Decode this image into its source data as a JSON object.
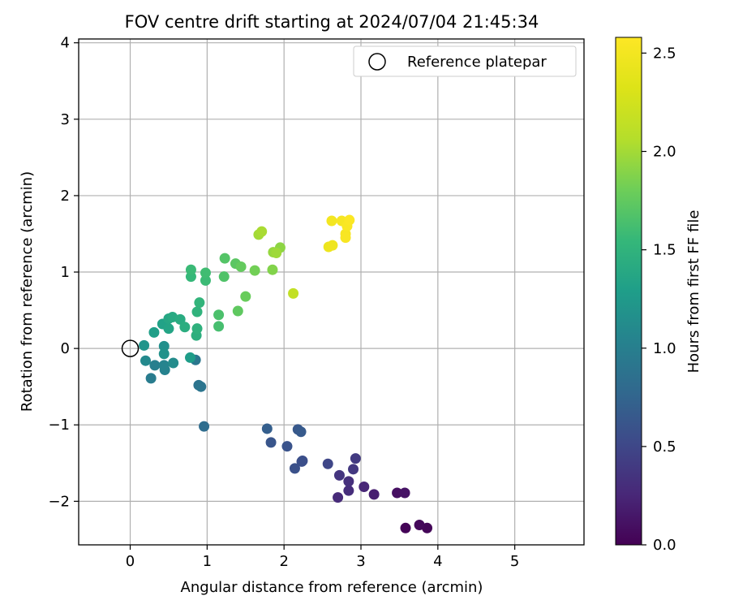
{
  "chart_data": {
    "type": "scatter",
    "title": "FOV centre drift starting at 2024/07/04 21:45:34",
    "xlabel": "Angular distance from reference (arcmin)",
    "ylabel": "Rotation from reference (arcmin)",
    "xlim": [
      -0.67,
      5.9
    ],
    "ylim": [
      -2.57,
      4.05
    ],
    "xticks": [
      0,
      1,
      2,
      3,
      4,
      5
    ],
    "yticks": [
      -2,
      -1,
      0,
      1,
      2,
      3,
      4
    ],
    "xtick_labels": [
      "0",
      "1",
      "2",
      "3",
      "4",
      "5"
    ],
    "ytick_labels": [
      "−2",
      "−1",
      "0",
      "1",
      "2",
      "3",
      "4"
    ],
    "grid": true,
    "legend": {
      "position": "top-right",
      "label": "Reference platepar"
    },
    "reference_point": {
      "x": 0,
      "y": 0
    },
    "colorbar": {
      "label": "Hours from first FF file",
      "colormap": "viridis",
      "range": [
        0,
        2.58
      ],
      "ticks": [
        0.0,
        0.5,
        1.0,
        1.5,
        2.0,
        2.5
      ],
      "tick_labels": [
        "0.0",
        "0.5",
        "1.0",
        "1.5",
        "2.0",
        "2.5"
      ]
    },
    "points": [
      {
        "x": 3.58,
        "y": -2.35,
        "c": 0.02
      },
      {
        "x": 3.86,
        "y": -2.35,
        "c": 0.03
      },
      {
        "x": 3.76,
        "y": -2.31,
        "c": 0.05
      },
      {
        "x": 3.47,
        "y": -1.89,
        "c": 0.1
      },
      {
        "x": 3.57,
        "y": -1.89,
        "c": 0.12
      },
      {
        "x": 3.17,
        "y": -1.91,
        "c": 0.2
      },
      {
        "x": 3.04,
        "y": -1.81,
        "c": 0.25
      },
      {
        "x": 2.7,
        "y": -1.95,
        "c": 0.28
      },
      {
        "x": 2.84,
        "y": -1.86,
        "c": 0.3
      },
      {
        "x": 2.84,
        "y": -1.74,
        "c": 0.32
      },
      {
        "x": 2.72,
        "y": -1.66,
        "c": 0.36
      },
      {
        "x": 2.9,
        "y": -1.58,
        "c": 0.38
      },
      {
        "x": 2.93,
        "y": -1.44,
        "c": 0.4
      },
      {
        "x": 2.57,
        "y": -1.51,
        "c": 0.5
      },
      {
        "x": 2.24,
        "y": -1.47,
        "c": 0.55
      },
      {
        "x": 2.23,
        "y": -1.48,
        "c": 0.57
      },
      {
        "x": 2.14,
        "y": -1.57,
        "c": 0.58
      },
      {
        "x": 2.04,
        "y": -1.28,
        "c": 0.6
      },
      {
        "x": 1.83,
        "y": -1.23,
        "c": 0.62
      },
      {
        "x": 2.18,
        "y": -1.06,
        "c": 0.64
      },
      {
        "x": 2.22,
        "y": -1.09,
        "c": 0.66
      },
      {
        "x": 1.78,
        "y": -1.05,
        "c": 0.7
      },
      {
        "x": 0.96,
        "y": -1.02,
        "c": 0.82
      },
      {
        "x": 0.89,
        "y": -0.48,
        "c": 0.88
      },
      {
        "x": 0.92,
        "y": -0.5,
        "c": 0.9
      },
      {
        "x": 0.85,
        "y": -0.15,
        "c": 0.92
      },
      {
        "x": 0.27,
        "y": -0.39,
        "c": 0.97
      },
      {
        "x": 0.32,
        "y": -0.22,
        "c": 1.0
      },
      {
        "x": 0.45,
        "y": -0.28,
        "c": 1.03
      },
      {
        "x": 0.44,
        "y": -0.22,
        "c": 1.05
      },
      {
        "x": 0.2,
        "y": -0.16,
        "c": 1.1
      },
      {
        "x": 0.56,
        "y": -0.19,
        "c": 1.12
      },
      {
        "x": 0.44,
        "y": 0.03,
        "c": 1.16
      },
      {
        "x": 0.44,
        "y": -0.07,
        "c": 1.18
      },
      {
        "x": 0.18,
        "y": 0.04,
        "c": 1.2
      },
      {
        "x": 0.78,
        "y": -0.12,
        "c": 1.28
      },
      {
        "x": 0.31,
        "y": 0.21,
        "c": 1.3
      },
      {
        "x": 0.42,
        "y": 0.32,
        "c": 1.33
      },
      {
        "x": 0.5,
        "y": 0.26,
        "c": 1.35
      },
      {
        "x": 0.5,
        "y": 0.39,
        "c": 1.37
      },
      {
        "x": 0.55,
        "y": 0.41,
        "c": 1.4
      },
      {
        "x": 0.65,
        "y": 0.38,
        "c": 1.42
      },
      {
        "x": 0.71,
        "y": 0.28,
        "c": 1.44
      },
      {
        "x": 0.86,
        "y": 0.17,
        "c": 1.46
      },
      {
        "x": 0.87,
        "y": 0.26,
        "c": 1.48
      },
      {
        "x": 0.87,
        "y": 0.48,
        "c": 1.5
      },
      {
        "x": 0.9,
        "y": 0.6,
        "c": 1.52
      },
      {
        "x": 0.79,
        "y": 0.94,
        "c": 1.55
      },
      {
        "x": 0.79,
        "y": 1.03,
        "c": 1.57
      },
      {
        "x": 0.98,
        "y": 0.89,
        "c": 1.58
      },
      {
        "x": 0.98,
        "y": 0.99,
        "c": 1.6
      },
      {
        "x": 1.15,
        "y": 0.29,
        "c": 1.63
      },
      {
        "x": 1.15,
        "y": 0.44,
        "c": 1.65
      },
      {
        "x": 1.22,
        "y": 0.94,
        "c": 1.67
      },
      {
        "x": 1.23,
        "y": 1.18,
        "c": 1.69
      },
      {
        "x": 1.37,
        "y": 1.11,
        "c": 1.72
      },
      {
        "x": 1.4,
        "y": 0.49,
        "c": 1.74
      },
      {
        "x": 1.44,
        "y": 1.07,
        "c": 1.76
      },
      {
        "x": 1.5,
        "y": 0.68,
        "c": 1.78
      },
      {
        "x": 1.62,
        "y": 1.02,
        "c": 1.82
      },
      {
        "x": 1.85,
        "y": 1.03,
        "c": 1.88
      },
      {
        "x": 1.95,
        "y": 1.32,
        "c": 1.92
      },
      {
        "x": 1.86,
        "y": 1.26,
        "c": 1.95
      },
      {
        "x": 1.9,
        "y": 1.25,
        "c": 1.98
      },
      {
        "x": 1.67,
        "y": 1.49,
        "c": 2.0
      },
      {
        "x": 1.71,
        "y": 1.53,
        "c": 2.02
      },
      {
        "x": 2.12,
        "y": 0.72,
        "c": 2.15
      },
      {
        "x": 2.58,
        "y": 1.33,
        "c": 2.45
      },
      {
        "x": 2.63,
        "y": 1.35,
        "c": 2.47
      },
      {
        "x": 2.62,
        "y": 1.67,
        "c": 2.5
      },
      {
        "x": 2.75,
        "y": 1.67,
        "c": 2.52
      },
      {
        "x": 2.8,
        "y": 1.5,
        "c": 2.53
      },
      {
        "x": 2.8,
        "y": 1.45,
        "c": 2.54
      },
      {
        "x": 2.82,
        "y": 1.6,
        "c": 2.55
      },
      {
        "x": 2.85,
        "y": 1.68,
        "c": 2.56
      }
    ]
  }
}
